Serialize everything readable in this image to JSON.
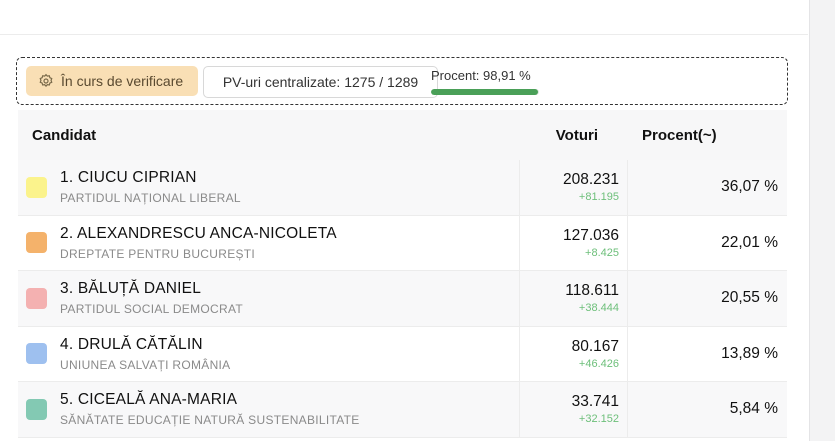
{
  "status": {
    "verification_label": "În curs de verificare",
    "pv_label": "PV-uri centralizate: 1275 / 1289",
    "percent_label": "Procent: 98,91 %",
    "percent_value": 98.91,
    "accent_color": "#4aa058"
  },
  "table": {
    "headers": {
      "candidate": "Candidat",
      "votes": "Voturi",
      "percent": "Procent(~)"
    },
    "rows": [
      {
        "name": "1. CIUCU CIPRIAN",
        "party": "PARTIDUL NAȚIONAL LIBERAL",
        "votes": "208.231",
        "delta": "+81.195",
        "percent": "36,07 %",
        "color": "#fbf38c"
      },
      {
        "name": "2. ALEXANDRESCU ANCA-NICOLETA",
        "party": "DREPTATE PENTRU BUCUREȘTI",
        "votes": "127.036",
        "delta": "+8.425",
        "percent": "22,01 %",
        "color": "#f4b26b"
      },
      {
        "name": "3. BĂLUȚĂ DANIEL",
        "party": "PARTIDUL SOCIAL DEMOCRAT",
        "votes": "118.611",
        "delta": "+38.444",
        "percent": "20,55 %",
        "color": "#f4b1b1"
      },
      {
        "name": "4. DRULĂ CĂTĂLIN",
        "party": "UNIUNEA SALVAȚI ROMÂNIA",
        "votes": "80.167",
        "delta": "+46.426",
        "percent": "13,89 %",
        "color": "#9ec0ef"
      },
      {
        "name": "5. CICEALĂ ANA-MARIA",
        "party": "SĂNĂTATE EDUCAȚIE NATURĂ SUSTENABILITATE",
        "votes": "33.741",
        "delta": "+32.152",
        "percent": "5,84 %",
        "color": "#83c9b3"
      }
    ]
  }
}
